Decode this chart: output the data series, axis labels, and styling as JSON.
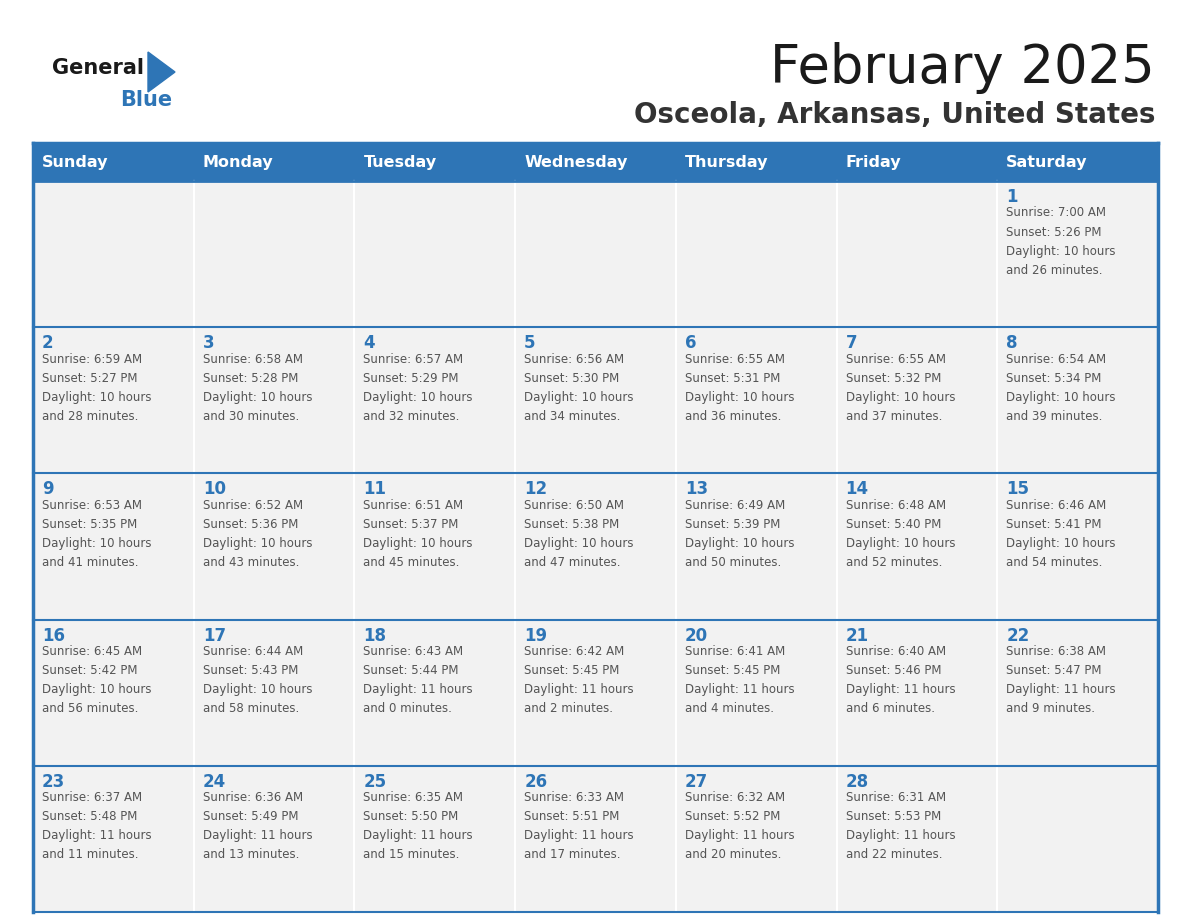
{
  "title": "February 2025",
  "subtitle": "Osceola, Arkansas, United States",
  "days_of_week": [
    "Sunday",
    "Monday",
    "Tuesday",
    "Wednesday",
    "Thursday",
    "Friday",
    "Saturday"
  ],
  "header_bg": "#2E75B6",
  "header_text": "#FFFFFF",
  "cell_bg": "#F2F2F2",
  "cell_text": "#555555",
  "day_num_color": "#2E75B6",
  "border_color": "#2E75B6",
  "title_color": "#1A1A1A",
  "subtitle_color": "#333333",
  "logo_general_color": "#1A1A1A",
  "logo_blue_color": "#2E75B6",
  "calendar": [
    [
      null,
      null,
      null,
      null,
      null,
      null,
      {
        "day": 1,
        "sunrise": "7:00 AM",
        "sunset": "5:26 PM",
        "daylight": "10 hours and 26 minutes."
      }
    ],
    [
      {
        "day": 2,
        "sunrise": "6:59 AM",
        "sunset": "5:27 PM",
        "daylight": "10 hours and 28 minutes."
      },
      {
        "day": 3,
        "sunrise": "6:58 AM",
        "sunset": "5:28 PM",
        "daylight": "10 hours and 30 minutes."
      },
      {
        "day": 4,
        "sunrise": "6:57 AM",
        "sunset": "5:29 PM",
        "daylight": "10 hours and 32 minutes."
      },
      {
        "day": 5,
        "sunrise": "6:56 AM",
        "sunset": "5:30 PM",
        "daylight": "10 hours and 34 minutes."
      },
      {
        "day": 6,
        "sunrise": "6:55 AM",
        "sunset": "5:31 PM",
        "daylight": "10 hours and 36 minutes."
      },
      {
        "day": 7,
        "sunrise": "6:55 AM",
        "sunset": "5:32 PM",
        "daylight": "10 hours and 37 minutes."
      },
      {
        "day": 8,
        "sunrise": "6:54 AM",
        "sunset": "5:34 PM",
        "daylight": "10 hours and 39 minutes."
      }
    ],
    [
      {
        "day": 9,
        "sunrise": "6:53 AM",
        "sunset": "5:35 PM",
        "daylight": "10 hours and 41 minutes."
      },
      {
        "day": 10,
        "sunrise": "6:52 AM",
        "sunset": "5:36 PM",
        "daylight": "10 hours and 43 minutes."
      },
      {
        "day": 11,
        "sunrise": "6:51 AM",
        "sunset": "5:37 PM",
        "daylight": "10 hours and 45 minutes."
      },
      {
        "day": 12,
        "sunrise": "6:50 AM",
        "sunset": "5:38 PM",
        "daylight": "10 hours and 47 minutes."
      },
      {
        "day": 13,
        "sunrise": "6:49 AM",
        "sunset": "5:39 PM",
        "daylight": "10 hours and 50 minutes."
      },
      {
        "day": 14,
        "sunrise": "6:48 AM",
        "sunset": "5:40 PM",
        "daylight": "10 hours and 52 minutes."
      },
      {
        "day": 15,
        "sunrise": "6:46 AM",
        "sunset": "5:41 PM",
        "daylight": "10 hours and 54 minutes."
      }
    ],
    [
      {
        "day": 16,
        "sunrise": "6:45 AM",
        "sunset": "5:42 PM",
        "daylight": "10 hours and 56 minutes."
      },
      {
        "day": 17,
        "sunrise": "6:44 AM",
        "sunset": "5:43 PM",
        "daylight": "10 hours and 58 minutes."
      },
      {
        "day": 18,
        "sunrise": "6:43 AM",
        "sunset": "5:44 PM",
        "daylight": "11 hours and 0 minutes."
      },
      {
        "day": 19,
        "sunrise": "6:42 AM",
        "sunset": "5:45 PM",
        "daylight": "11 hours and 2 minutes."
      },
      {
        "day": 20,
        "sunrise": "6:41 AM",
        "sunset": "5:45 PM",
        "daylight": "11 hours and 4 minutes."
      },
      {
        "day": 21,
        "sunrise": "6:40 AM",
        "sunset": "5:46 PM",
        "daylight": "11 hours and 6 minutes."
      },
      {
        "day": 22,
        "sunrise": "6:38 AM",
        "sunset": "5:47 PM",
        "daylight": "11 hours and 9 minutes."
      }
    ],
    [
      {
        "day": 23,
        "sunrise": "6:37 AM",
        "sunset": "5:48 PM",
        "daylight": "11 hours and 11 minutes."
      },
      {
        "day": 24,
        "sunrise": "6:36 AM",
        "sunset": "5:49 PM",
        "daylight": "11 hours and 13 minutes."
      },
      {
        "day": 25,
        "sunrise": "6:35 AM",
        "sunset": "5:50 PM",
        "daylight": "11 hours and 15 minutes."
      },
      {
        "day": 26,
        "sunrise": "6:33 AM",
        "sunset": "5:51 PM",
        "daylight": "11 hours and 17 minutes."
      },
      {
        "day": 27,
        "sunrise": "6:32 AM",
        "sunset": "5:52 PM",
        "daylight": "11 hours and 20 minutes."
      },
      {
        "day": 28,
        "sunrise": "6:31 AM",
        "sunset": "5:53 PM",
        "daylight": "11 hours and 22 minutes."
      },
      null
    ]
  ]
}
